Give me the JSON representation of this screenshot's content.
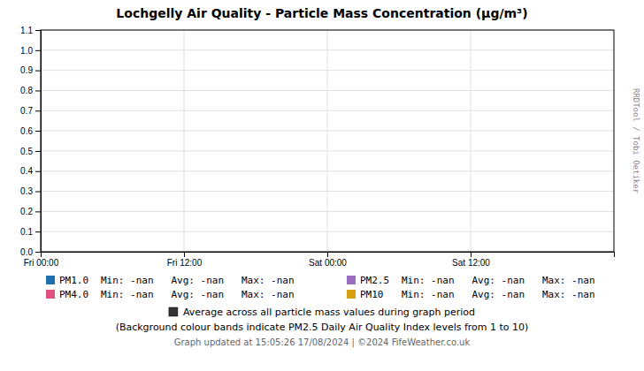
{
  "chart_data": {
    "type": "line",
    "title": "Lochgelly Air Quality - Particle Mass Concentration (μg/m³)",
    "x": [],
    "xlim": [
      0,
      48
    ],
    "xticks": [
      {
        "value": 0,
        "label": "Fri 00:00"
      },
      {
        "value": 12,
        "label": "Fri 12:00"
      },
      {
        "value": 24,
        "label": "Sat 00:00"
      },
      {
        "value": 36,
        "label": "Sat 12:00"
      }
    ],
    "ylim": [
      0.0,
      1.1
    ],
    "yticks": [
      {
        "value": 0,
        "label": "0.0"
      },
      0.1,
      0.2,
      0.3,
      0.4,
      0.5,
      0.6,
      0.7,
      0.8,
      0.9,
      {
        "value": 1,
        "label": "1.0"
      },
      1.1
    ],
    "grid": true,
    "series": [
      {
        "name": "PM1.0",
        "color": "#1f6fad",
        "values": []
      },
      {
        "name": "PM4.0",
        "color": "#e05080",
        "values": []
      },
      {
        "name": "PM2.5",
        "color": "#9b6bbf",
        "values": []
      },
      {
        "name": "PM10",
        "color": "#d4a010",
        "values": []
      }
    ],
    "annotations": [
      {
        "text": "Min: -nan   Avg: -nan   Max: -nan"
      },
      {
        "text": "Min: -nan   Avg: -nan   Max: -nan"
      },
      {
        "text": "Min: -nan   Avg: -nan   Max: -nan"
      },
      {
        "text": "Min: -nan   Avg: -nan   Max: -nan"
      },
      {
        "text": "Average across all particle mass values during graph period",
        "color": "#333333"
      },
      {
        "text": "(Background colour bands indicate PM2.5 Daily Air Quality Index levels from 1 to 10)"
      },
      {
        "text": "Graph updated at 15:05:26 17/08/2024 | ©2024 FifeWeather.co.uk"
      },
      {
        "text": "RRDTool / Tobi Oetiker"
      }
    ]
  }
}
